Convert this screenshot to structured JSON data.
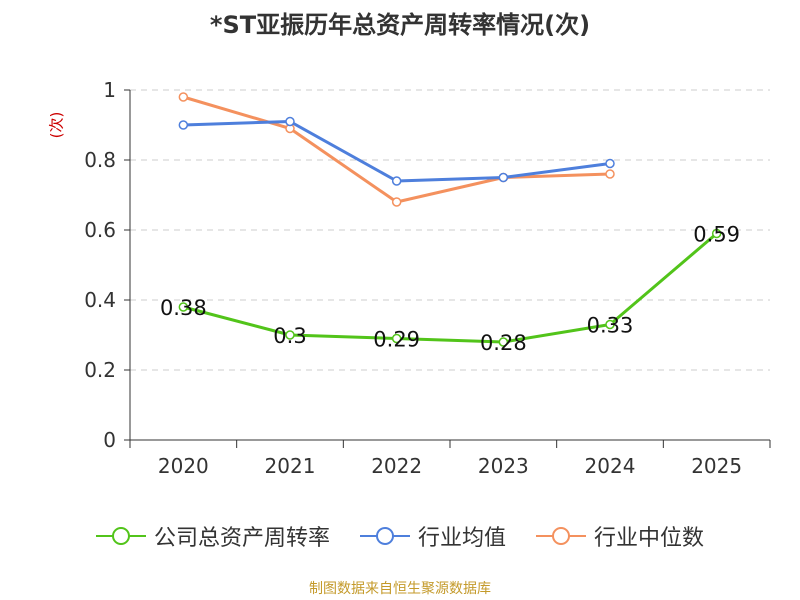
{
  "chart_data": {
    "type": "line",
    "title": "*ST亚振历年总资产周转率情况(次)",
    "xlabel": "",
    "ylabel": "(次)",
    "categories": [
      "2020",
      "2021",
      "2022",
      "2023",
      "2024",
      "2025"
    ],
    "ylim": [
      0,
      1
    ],
    "yticks": [
      "0",
      "0.2",
      "0.4",
      "0.6",
      "0.8",
      "1"
    ],
    "grid": true,
    "series": [
      {
        "name": "公司总资产周转率",
        "color": "#52c41a",
        "values": [
          0.38,
          0.3,
          0.29,
          0.28,
          0.33,
          0.59
        ],
        "labels": [
          "0.38",
          "0.3",
          "0.29",
          "0.28",
          "0.33",
          "0.59"
        ]
      },
      {
        "name": "行业均值",
        "color": "#4e7fdc",
        "values": [
          0.9,
          0.91,
          0.74,
          0.75,
          0.79,
          null
        ]
      },
      {
        "name": "行业中位数",
        "color": "#f4915e",
        "values": [
          0.98,
          0.89,
          0.68,
          0.75,
          0.76,
          null
        ]
      }
    ],
    "legend_position": "bottom"
  },
  "footer": "制图数据来自恒生聚源数据库"
}
